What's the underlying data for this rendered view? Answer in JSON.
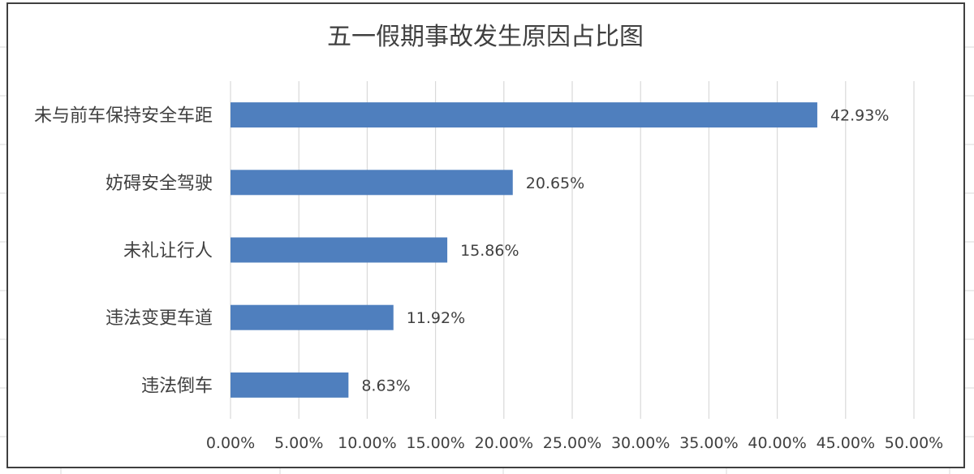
{
  "chart_data": {
    "type": "bar",
    "orientation": "horizontal",
    "title": "五一假期事故发生原因占比图",
    "categories": [
      "未与前车保持安全车距",
      "妨碍安全驾驶",
      "未礼让行人",
      "违法变更车道",
      "违法倒车"
    ],
    "values": [
      42.93,
      20.65,
      15.86,
      11.92,
      8.63
    ],
    "data_labels": [
      "42.93%",
      "20.65%",
      "15.86%",
      "11.92%",
      "8.63%"
    ],
    "xlim": [
      0,
      50
    ],
    "x_ticks": [
      0,
      5,
      10,
      15,
      20,
      25,
      30,
      35,
      40,
      45,
      50
    ],
    "x_tick_labels": [
      "0.00%",
      "5.00%",
      "10.00%",
      "15.00%",
      "20.00%",
      "25.00%",
      "30.00%",
      "35.00%",
      "40.00%",
      "45.00%",
      "50.00%"
    ],
    "grid": true,
    "legend": "none",
    "bar_color": "#4f7fbe"
  }
}
